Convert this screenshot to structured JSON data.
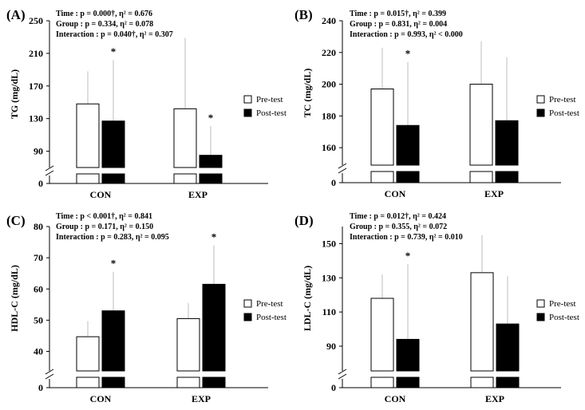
{
  "legend": {
    "pre": "Pre-test",
    "post": "Post-test"
  },
  "colors": {
    "pre_fill": "#ffffff",
    "post_fill": "#000000",
    "stroke": "#000000",
    "error_bar": "#bdbdbd"
  },
  "chart_data": [
    {
      "id": "A",
      "label": "(A)",
      "type": "bar",
      "ylabel": "TG (mg/dL)",
      "ylim": [
        70,
        250
      ],
      "ticks": [
        90,
        130,
        170,
        210,
        250
      ],
      "zero_label": "0",
      "categories": [
        "CON",
        "EXP"
      ],
      "series": [
        {
          "name": "Pre-test",
          "values": [
            148,
            142
          ],
          "sd": [
            40,
            87
          ]
        },
        {
          "name": "Post-test",
          "values": [
            127,
            85
          ],
          "sd": [
            75,
            36
          ]
        }
      ],
      "significance": [
        {
          "category": 0,
          "series": 1,
          "mark": "*"
        },
        {
          "category": 1,
          "series": 1,
          "mark": "*"
        }
      ],
      "stats": [
        "Time : p = 0.000†, η² = 0.676",
        "Group : p = 0.334, η² = 0.078",
        "Interaction : p = 0.040†, η² = 0.307"
      ]
    },
    {
      "id": "B",
      "label": "(B)",
      "type": "bar",
      "ylabel": "TC (mg/dL)",
      "ylim": [
        149,
        240
      ],
      "ticks": [
        160,
        180,
        200,
        220,
        240
      ],
      "zero_label": "0",
      "categories": [
        "CON",
        "EXP"
      ],
      "series": [
        {
          "name": "Pre-test",
          "values": [
            197,
            200
          ],
          "sd": [
            26,
            27
          ]
        },
        {
          "name": "Post-test",
          "values": [
            174,
            177
          ],
          "sd": [
            40,
            40
          ]
        }
      ],
      "significance": [
        {
          "category": 0,
          "series": 1,
          "mark": "*"
        }
      ],
      "stats": [
        "Time : p = 0.015†, η² = 0.399",
        "Group : p = 0.831, η² = 0.004",
        "Interaction : p = 0.993, η² < 0.000"
      ]
    },
    {
      "id": "C",
      "label": "(C)",
      "type": "bar",
      "ylabel": "HDL-C (mg/dL)",
      "ylim": [
        34,
        80
      ],
      "ticks": [
        40,
        50,
        60,
        70,
        80
      ],
      "zero_label": "0",
      "categories": [
        "CON",
        "EXP"
      ],
      "series": [
        {
          "name": "Pre-test",
          "values": [
            44.7,
            50.5
          ],
          "sd": [
            5,
            5
          ]
        },
        {
          "name": "Post-test",
          "values": [
            53,
            61.5
          ],
          "sd": [
            12.5,
            12.5
          ]
        }
      ],
      "significance": [
        {
          "category": 0,
          "series": 1,
          "mark": "*"
        },
        {
          "category": 1,
          "series": 1,
          "mark": "*"
        }
      ],
      "stats": [
        "Time : p < 0.001†, η² = 0.841",
        "Group : p = 0.171, η² = 0.150",
        "Interaction : p = 0.283, η² = 0.095"
      ]
    },
    {
      "id": "D",
      "label": "(D)",
      "type": "bar",
      "ylabel": "LDL-C (mg/dL)",
      "ylim": [
        76,
        160
      ],
      "ticks": [
        90,
        110,
        130,
        150
      ],
      "zero_label": "0",
      "categories": [
        "CON",
        "EXP"
      ],
      "series": [
        {
          "name": "Pre-test",
          "values": [
            118,
            133
          ],
          "sd": [
            14,
            22
          ]
        },
        {
          "name": "Post-test",
          "values": [
            94,
            103
          ],
          "sd": [
            44,
            28
          ]
        }
      ],
      "significance": [
        {
          "category": 0,
          "series": 1,
          "mark": "*"
        }
      ],
      "stats": [
        "Time : p = 0.012†, η² = 0.424",
        "Group : p = 0.355, η² = 0.072",
        "Interaction : p = 0.739, η² = 0.010"
      ]
    }
  ]
}
